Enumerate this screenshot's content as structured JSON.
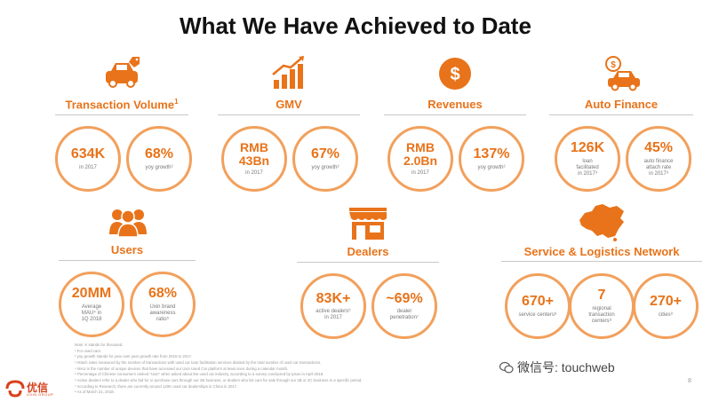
{
  "title": "What We Have Achieved to Date",
  "sections": {
    "transaction": {
      "label": "Transaction Volume",
      "sup": "1",
      "icon": "car-tag-icon",
      "stats": [
        {
          "value": "634K",
          "caption": "in 2017"
        },
        {
          "value": "68%",
          "caption": "yoy growth²"
        }
      ]
    },
    "gmv": {
      "label": "GMV",
      "icon": "bar-chart-growth-icon",
      "stats": [
        {
          "value_line1": "RMB",
          "value_line2": "43Bn",
          "caption": "in 2017"
        },
        {
          "value": "67%",
          "caption": "yoy growth²"
        }
      ]
    },
    "revenues": {
      "label": "Revenues",
      "icon": "dollar-coin-icon",
      "stats": [
        {
          "value_line1": "RMB",
          "value_line2": "2.0Bn",
          "caption": "in 2017"
        },
        {
          "value": "137%",
          "caption": "yoy growth²"
        }
      ]
    },
    "auto_finance": {
      "label": "Auto Finance",
      "icon": "car-finance-icon",
      "stats": [
        {
          "value": "126K",
          "caption_l1": "loan",
          "caption_l2": "facilitated",
          "caption_l3": "in 2017³"
        },
        {
          "value": "45%",
          "caption_l1": "auto finance",
          "caption_l2": "attach rate",
          "caption_l3": "in 2017³"
        }
      ]
    },
    "users": {
      "label": "Users",
      "icon": "users-group-icon",
      "stats": [
        {
          "value": "20MM",
          "caption_l1": "Average",
          "caption_l2": "MAU⁴ in",
          "caption_l3": "1Q 2018"
        },
        {
          "value": "68%",
          "caption_l1": "Uxin brand",
          "caption_l2": "awareness",
          "caption_l3": "ratio⁵"
        }
      ]
    },
    "dealers": {
      "label": "Dealers",
      "icon": "storefront-icon",
      "stats": [
        {
          "value": "83K+",
          "caption_l1": "active dealers⁶",
          "caption_l2": "in 2017"
        },
        {
          "value": "~69%",
          "caption_l1": "dealer",
          "caption_l2": "penetration⁷"
        }
      ]
    },
    "service": {
      "label": "Service & Logistics Network",
      "icon": "china-map-icon",
      "stats": [
        {
          "value": "670+",
          "caption_l1": "service centers⁸"
        },
        {
          "value": "7",
          "caption_l1": "regional",
          "caption_l2": "transaction",
          "caption_l3": "centers⁸"
        },
        {
          "value": "270+",
          "caption_l1": "cities⁸"
        }
      ]
    }
  },
  "notes": [
    "Note: K stands for thousand.",
    "¹ For used cars.",
    "² yoy growth stands for year over year growth rate from 2016 to 2017.",
    "³ Attach rates measured by the number of transactions with used car loan facilitation services divided by the total number of used car transactions.",
    "⁴ MAU is the number of unique devices that have accessed our Uxin Used Car platform at least once during a calendar month.",
    "⁵ Percentage of Chinese consumers ranked \"Uxin\" when asked about the used car industry, according to a survey conducted by Ipsos in April 2018.",
    "⁶ Active dealers refer to a dealer who bid for or purchase cars through our 2B business, or dealers who list cars for sale through our 2B or 2C business in a specific period.",
    "⁷ According to Research, there are currently around 120K used car dealerships in China in 2017.",
    "⁸ As of March 31, 2018."
  ],
  "logo": {
    "text": "优信",
    "sub": "UXIN GROUP"
  },
  "watermark": "微信号: touchweb",
  "page_number": "8",
  "colors": {
    "accent": "#e8731a",
    "circle_border": "#f2a05c",
    "divider": "#c8c8c8"
  }
}
